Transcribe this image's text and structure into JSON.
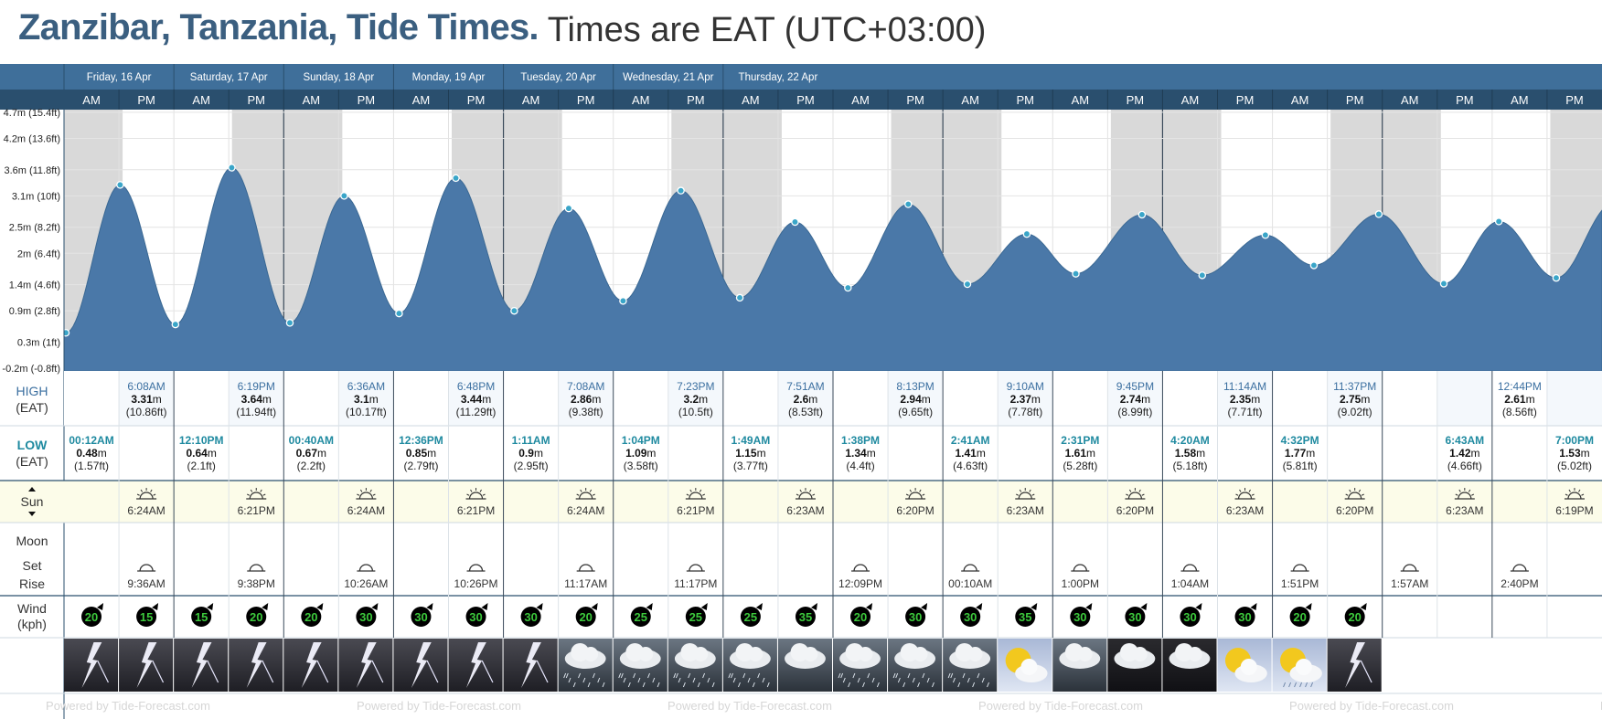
{
  "page": {
    "title": "Zanzibar, Tanzania, Tide Times.",
    "subtitle": "Times are EAT (UTC+03:00)",
    "watermark": "Powered by Tide-Forecast.com"
  },
  "chart_data": {
    "type": "area",
    "days": [
      "Friday, 16 Apr",
      "Saturday, 17 Apr",
      "Sunday, 18 Apr",
      "Monday, 19 Apr",
      "Tuesday, 20 Apr",
      "Wednesday, 21 Apr",
      "Thursday, 22 Apr"
    ],
    "ampm": [
      "AM",
      "PM"
    ],
    "y_ticks": [
      "4.7m (15.4ft)",
      "4.2m (13.6ft)",
      "3.6m (11.8ft)",
      "3.1m (10ft)",
      "2.5m (8.2ft)",
      "2m (6.4ft)",
      "1.4m (4.6ft)",
      "0.9m (2.8ft)",
      "0.3m (1ft)",
      "-0.2m (-0.8ft)"
    ],
    "y_tick_values": [
      4.7,
      4.2,
      3.6,
      3.1,
      2.5,
      2.0,
      1.4,
      0.9,
      0.3,
      -0.2
    ],
    "ylim": [
      -0.25,
      4.75
    ],
    "x_unit": "hours since Friday 00:00",
    "tides": [
      {
        "type": "low",
        "hour": 0.2,
        "height": 0.48
      },
      {
        "type": "high",
        "hour": 6.13,
        "height": 3.31
      },
      {
        "type": "low",
        "hour": 12.17,
        "height": 0.64
      },
      {
        "type": "high",
        "hour": 18.32,
        "height": 3.64
      },
      {
        "type": "low",
        "hour": 24.67,
        "height": 0.67
      },
      {
        "type": "high",
        "hour": 30.6,
        "height": 3.1
      },
      {
        "type": "low",
        "hour": 36.6,
        "height": 0.85
      },
      {
        "type": "high",
        "hour": 42.8,
        "height": 3.44
      },
      {
        "type": "low",
        "hour": 49.18,
        "height": 0.9
      },
      {
        "type": "high",
        "hour": 55.13,
        "height": 2.86
      },
      {
        "type": "low",
        "hour": 61.07,
        "height": 1.09
      },
      {
        "type": "high",
        "hour": 67.38,
        "height": 3.2
      },
      {
        "type": "low",
        "hour": 73.82,
        "height": 1.15
      },
      {
        "type": "high",
        "hour": 79.85,
        "height": 2.6
      },
      {
        "type": "low",
        "hour": 85.63,
        "height": 1.34
      },
      {
        "type": "high",
        "hour": 92.22,
        "height": 2.94
      },
      {
        "type": "low",
        "hour": 98.68,
        "height": 1.41
      },
      {
        "type": "high",
        "hour": 105.17,
        "height": 2.37
      },
      {
        "type": "low",
        "hour": 110.52,
        "height": 1.61
      },
      {
        "type": "high",
        "hour": 117.75,
        "height": 2.74
      },
      {
        "type": "low",
        "hour": 124.33,
        "height": 1.58
      },
      {
        "type": "high",
        "hour": 131.23,
        "height": 2.35
      },
      {
        "type": "low",
        "hour": 136.53,
        "height": 1.77
      },
      {
        "type": "high",
        "hour": 143.62,
        "height": 2.75
      },
      {
        "type": "low",
        "hour": 150.72,
        "height": 1.42
      },
      {
        "type": "high",
        "hour": 156.73,
        "height": 2.61
      },
      {
        "type": "low",
        "hour": 163.0,
        "height": 1.53
      }
    ],
    "night_shading": {
      "sunset_hour": 18.35,
      "sunrise_hour": 6.4
    }
  },
  "rows": {
    "high_label": "HIGH",
    "high_sub": "(EAT)",
    "low_label": "LOW",
    "low_sub": "(EAT)",
    "sun_label": "Sun",
    "moon_label": "Moon",
    "set_label": "Set",
    "rise_label": "Rise",
    "wind_label": "Wind",
    "wind_unit": "(kph)"
  },
  "high_cells": [
    {
      "slot": 1,
      "time": "6:08AM",
      "m": "3.31",
      "ft": "(10.86ft)"
    },
    {
      "slot": 3,
      "time": "6:19PM",
      "m": "3.64",
      "ft": "(11.94ft)"
    },
    {
      "slot": 5,
      "time": "6:36AM",
      "m": "3.1",
      "ft": "(10.17ft)"
    },
    {
      "slot": 7,
      "time": "6:48PM",
      "m": "3.44",
      "ft": "(11.29ft)"
    },
    {
      "slot": 9,
      "time": "7:08AM",
      "m": "2.86",
      "ft": "(9.38ft)"
    },
    {
      "slot": 11,
      "time": "7:23PM",
      "m": "3.2",
      "ft": "(10.5ft)"
    },
    {
      "slot": 13,
      "time": "7:51AM",
      "m": "2.6",
      "ft": "(8.53ft)"
    },
    {
      "slot": 15,
      "time": "8:13PM",
      "m": "2.94",
      "ft": "(9.65ft)"
    },
    {
      "slot": 17,
      "time": "9:10AM",
      "m": "2.37",
      "ft": "(7.78ft)"
    },
    {
      "slot": 19,
      "time": "9:45PM",
      "m": "2.74",
      "ft": "(8.99ft)"
    },
    {
      "slot": 21,
      "time": "11:14AM",
      "m": "2.35",
      "ft": "(7.71ft)"
    },
    {
      "slot": 23,
      "time": "11:37PM",
      "m": "2.75",
      "ft": "(9.02ft)"
    },
    {
      "slot": 26,
      "time": "12:44PM",
      "m": "2.61",
      "ft": "(8.56ft)"
    }
  ],
  "low_cells": [
    {
      "slot": 0,
      "time": "00:12AM",
      "m": "0.48",
      "ft": "(1.57ft)"
    },
    {
      "slot": 2,
      "time": "12:10PM",
      "m": "0.64",
      "ft": "(2.1ft)"
    },
    {
      "slot": 4,
      "time": "00:40AM",
      "m": "0.67",
      "ft": "(2.2ft)"
    },
    {
      "slot": 6,
      "time": "12:36PM",
      "m": "0.85",
      "ft": "(2.79ft)"
    },
    {
      "slot": 8,
      "time": "1:11AM",
      "m": "0.9",
      "ft": "(2.95ft)"
    },
    {
      "slot": 10,
      "time": "1:04PM",
      "m": "1.09",
      "ft": "(3.58ft)"
    },
    {
      "slot": 12,
      "time": "1:49AM",
      "m": "1.15",
      "ft": "(3.77ft)"
    },
    {
      "slot": 14,
      "time": "1:38PM",
      "m": "1.34",
      "ft": "(4.4ft)"
    },
    {
      "slot": 16,
      "time": "2:41AM",
      "m": "1.41",
      "ft": "(4.63ft)"
    },
    {
      "slot": 18,
      "time": "2:31PM",
      "m": "1.61",
      "ft": "(5.28ft)"
    },
    {
      "slot": 20,
      "time": "4:20AM",
      "m": "1.58",
      "ft": "(5.18ft)"
    },
    {
      "slot": 22,
      "time": "4:32PM",
      "m": "1.77",
      "ft": "(5.81ft)"
    },
    {
      "slot": 25,
      "time": "6:43AM",
      "m": "1.42",
      "ft": "(4.66ft)"
    },
    {
      "slot": 27,
      "time": "7:00PM",
      "m": "1.53",
      "ft": "(5.02ft)"
    }
  ],
  "sun_cells": [
    {
      "slot": 1,
      "kind": "sunrise",
      "time": "6:24AM"
    },
    {
      "slot": 3,
      "kind": "sunset",
      "time": "6:21PM"
    },
    {
      "slot": 5,
      "kind": "sunrise",
      "time": "6:24AM"
    },
    {
      "slot": 7,
      "kind": "sunset",
      "time": "6:21PM"
    },
    {
      "slot": 9,
      "kind": "sunrise",
      "time": "6:24AM"
    },
    {
      "slot": 11,
      "kind": "sunset",
      "time": "6:21PM"
    },
    {
      "slot": 13,
      "kind": "sunrise",
      "time": "6:23AM"
    },
    {
      "slot": 15,
      "kind": "sunset",
      "time": "6:20PM"
    },
    {
      "slot": 17,
      "kind": "sunrise",
      "time": "6:23AM"
    },
    {
      "slot": 19,
      "kind": "sunset",
      "time": "6:20PM"
    },
    {
      "slot": 21,
      "kind": "sunrise",
      "time": "6:23AM"
    },
    {
      "slot": 23,
      "kind": "sunset",
      "time": "6:20PM"
    },
    {
      "slot": 25,
      "kind": "sunrise",
      "time": "6:23AM"
    },
    {
      "slot": 27,
      "kind": "sunset",
      "time": "6:19PM"
    }
  ],
  "moon_cells": [
    {
      "slot": 1,
      "time": "9:36AM"
    },
    {
      "slot": 3,
      "time": "9:38PM"
    },
    {
      "slot": 5,
      "time": "10:26AM"
    },
    {
      "slot": 7,
      "time": "10:26PM"
    },
    {
      "slot": 9,
      "time": "11:17AM"
    },
    {
      "slot": 11,
      "time": "11:17PM"
    },
    {
      "slot": 14,
      "time": "12:09PM"
    },
    {
      "slot": 16,
      "time": "00:10AM"
    },
    {
      "slot": 18,
      "time": "1:00PM"
    },
    {
      "slot": 20,
      "time": "1:04AM"
    },
    {
      "slot": 22,
      "time": "1:51PM"
    },
    {
      "slot": 24,
      "time": "1:57AM"
    },
    {
      "slot": 26,
      "time": "2:40PM"
    }
  ],
  "wind": [
    20,
    15,
    15,
    20,
    20,
    30,
    30,
    30,
    30,
    20,
    25,
    25,
    25,
    35,
    20,
    30,
    30,
    35,
    30,
    30,
    30,
    30,
    20,
    20
  ],
  "weather": [
    "storm",
    "storm",
    "storm",
    "storm",
    "storm",
    "storm",
    "storm",
    "storm",
    "storm",
    "rain",
    "rain",
    "rain",
    "rain",
    "overcast",
    "rain",
    "rain",
    "rain",
    "partly-sunny",
    "overcast",
    "cloudy",
    "cloudy",
    "partly-sunny",
    "partly-sunny-rain",
    "storm"
  ],
  "colors": {
    "water": "#4a78a8",
    "water_line": "#3a6893",
    "header_top": "#3f6f9a",
    "header_bottom": "#2a4f6e",
    "title_blue": "#3b5f80",
    "night": "#d9d9d9",
    "sun_row": "#fcfce9",
    "wind_badge": "#000000",
    "wind_text": "#3cc83c"
  }
}
